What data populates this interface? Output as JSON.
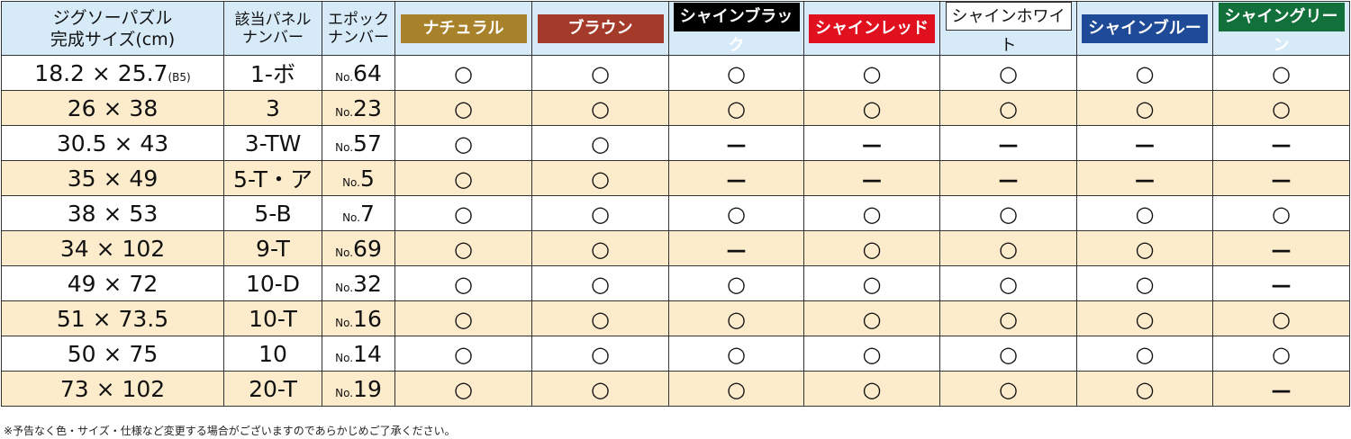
{
  "headers": {
    "size": [
      "ジグソーパズル",
      "完成サイズ(cm)"
    ],
    "panel": [
      "該当パネル",
      "ナンバー"
    ],
    "epoch": [
      "エポック",
      "ナンバー"
    ],
    "colors": [
      {
        "label": "ナチュラル",
        "bg": "#a8822a",
        "fg": "#ffffff"
      },
      {
        "label": "ブラウン",
        "bg": "#a33a2a",
        "fg": "#ffffff"
      },
      {
        "label": "シャインブラック",
        "bg": "#000000",
        "fg": "#ffffff"
      },
      {
        "label": "シャインレッド",
        "bg": "#e0101e",
        "fg": "#ffffff"
      },
      {
        "label": "シャインホワイト",
        "bg": "#ffffff",
        "fg": "#111111"
      },
      {
        "label": "シャインブルー",
        "bg": "#1e4a98",
        "fg": "#ffffff"
      },
      {
        "label": "シャイングリーン",
        "bg": "#12703a",
        "fg": "#ffffff"
      }
    ]
  },
  "rows": [
    {
      "size": "18.2 × 25.7",
      "size_note": "(B5)",
      "panel": "1-ボ",
      "no_prefix": "No.",
      "no": "64",
      "avail": [
        "○",
        "○",
        "○",
        "○",
        "○",
        "○",
        "○"
      ]
    },
    {
      "size": "26 × 38",
      "size_note": "",
      "panel": "3",
      "no_prefix": "No.",
      "no": "23",
      "avail": [
        "○",
        "○",
        "○",
        "○",
        "○",
        "○",
        "○"
      ]
    },
    {
      "size": "30.5 × 43",
      "size_note": "",
      "panel": "3-TW",
      "no_prefix": "No.",
      "no": "57",
      "avail": [
        "○",
        "○",
        "—",
        "—",
        "—",
        "—",
        "—"
      ]
    },
    {
      "size": "35 × 49",
      "size_note": "",
      "panel": "5-T・ア",
      "no_prefix": "No.",
      "no": "5",
      "avail": [
        "○",
        "○",
        "—",
        "—",
        "—",
        "—",
        "—"
      ]
    },
    {
      "size": "38 × 53",
      "size_note": "",
      "panel": "5-B",
      "no_prefix": "No.",
      "no": "7",
      "avail": [
        "○",
        "○",
        "○",
        "○",
        "○",
        "○",
        "○"
      ]
    },
    {
      "size": "34 × 102",
      "size_note": "",
      "panel": "9-T",
      "no_prefix": "No.",
      "no": "69",
      "avail": [
        "○",
        "○",
        "—",
        "○",
        "○",
        "○",
        "—"
      ]
    },
    {
      "size": "49 × 72",
      "size_note": "",
      "panel": "10-D",
      "no_prefix": "No.",
      "no": "32",
      "avail": [
        "○",
        "○",
        "○",
        "○",
        "○",
        "○",
        "—"
      ]
    },
    {
      "size": "51 × 73.5",
      "size_note": "",
      "panel": "10-T",
      "no_prefix": "No.",
      "no": "16",
      "avail": [
        "○",
        "○",
        "○",
        "○",
        "○",
        "○",
        "○"
      ]
    },
    {
      "size": "50 × 75",
      "size_note": "",
      "panel": "10",
      "no_prefix": "No.",
      "no": "14",
      "avail": [
        "○",
        "○",
        "○",
        "○",
        "○",
        "○",
        "○"
      ]
    },
    {
      "size": "73 × 102",
      "size_note": "",
      "panel": "20-T",
      "no_prefix": "No.",
      "no": "19",
      "avail": [
        "○",
        "○",
        "○",
        "○",
        "○",
        "○",
        "—"
      ]
    }
  ],
  "footnote": "※予告なく色・サイズ・仕様など変更する場合がございますのであらかじめご了承ください。"
}
